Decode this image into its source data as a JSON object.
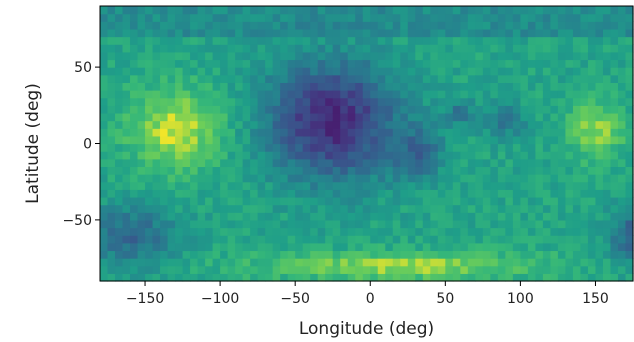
{
  "chart_data": {
    "type": "heatmap",
    "title": "",
    "xlabel": "Longitude (deg)",
    "ylabel": "Latitude (deg)",
    "xlim": [
      -180,
      175
    ],
    "ylim": [
      -90,
      90
    ],
    "xticks": [
      -150,
      -100,
      -50,
      0,
      50,
      100,
      150
    ],
    "yticks": [
      -50,
      0,
      50
    ],
    "xtick_labels": [
      "−150",
      "−100",
      "−50",
      "0",
      "50",
      "100",
      "150"
    ],
    "ytick_labels": [
      "−50",
      "0",
      "50"
    ],
    "colormap": "viridis",
    "grid": false,
    "cell_size_deg": 5,
    "value_range": [
      0,
      1
    ],
    "regions": [
      {
        "lon": -25,
        "lat": 15,
        "rx": 55,
        "ry": 48,
        "value": 0.12
      },
      {
        "lon": 30,
        "lat": -5,
        "rx": 22,
        "ry": 22,
        "value": 0.35
      },
      {
        "lon": 90,
        "lat": 15,
        "rx": 18,
        "ry": 14,
        "value": 0.45
      },
      {
        "lon": 60,
        "lat": 20,
        "rx": 12,
        "ry": 10,
        "value": 0.42
      },
      {
        "lon": -130,
        "lat": 10,
        "rx": 40,
        "ry": 35,
        "value": 0.95
      },
      {
        "lon": 150,
        "lat": 10,
        "rx": 25,
        "ry": 25,
        "value": 0.9
      },
      {
        "lon": -160,
        "lat": -60,
        "rx": 40,
        "ry": 25,
        "value": 0.38
      },
      {
        "lon": 175,
        "lat": -60,
        "rx": 20,
        "ry": 22,
        "value": 0.35
      },
      {
        "lon": 20,
        "lat": -80,
        "rx": 120,
        "ry": 12,
        "value": 0.92
      }
    ],
    "base_value": 0.66,
    "north_cap_value": 0.55
  }
}
